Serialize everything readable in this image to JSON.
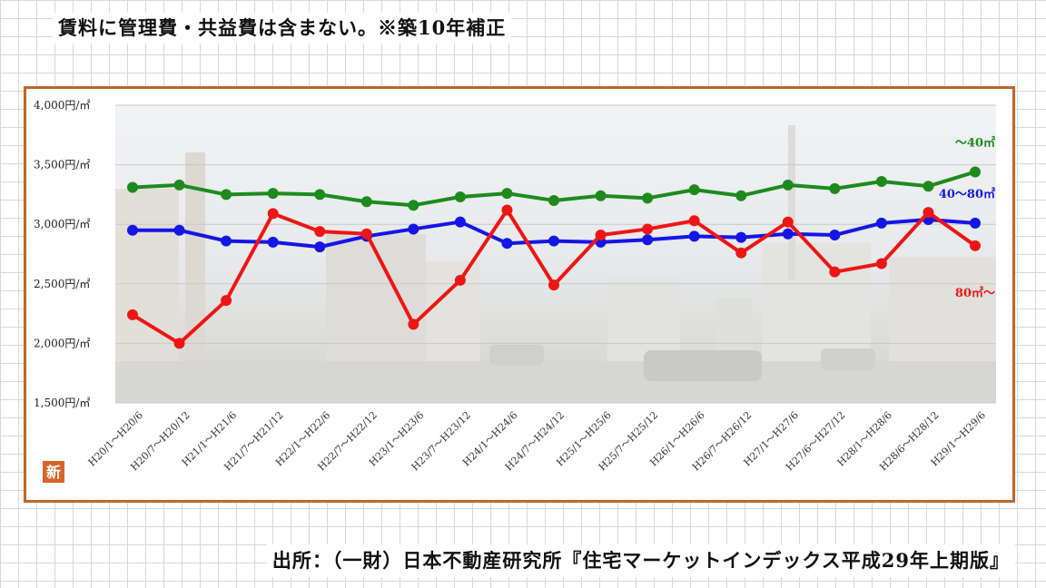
{
  "note": "賃料に管理費・共益費は含まない。※築10年補正",
  "source": "出所：（一財）日本不動産研究所『住宅マーケットインデックス平成29年上期版』",
  "badge": "新",
  "chart_data": {
    "type": "line",
    "title": "",
    "xlabel": "",
    "ylabel": "",
    "ylim": [
      1500,
      4000
    ],
    "yticks": [
      {
        "value": 1500,
        "label": "1,500円/㎡"
      },
      {
        "value": 2000,
        "label": "2,000円/㎡"
      },
      {
        "value": 2500,
        "label": "2,500円/㎡"
      },
      {
        "value": 3000,
        "label": "3,000円/㎡"
      },
      {
        "value": 3500,
        "label": "3,500円/㎡"
      },
      {
        "value": 4000,
        "label": "4,000円/㎡"
      }
    ],
    "grid": true,
    "categories": [
      "H20/1～H20/6",
      "H20/7～H20/12",
      "H21/1～H21/6",
      "H21/7～H21/12",
      "H22/1～H22/6",
      "H22/7～H22/12",
      "H23/1～H23/6",
      "H23/7～H23/12",
      "H24/1～H24/6",
      "H24/7～H24/12",
      "H25/1～H25/6",
      "H25/7～H25/12",
      "H26/1～H26/6",
      "H26/7～H26/12",
      "H27/1～H27/6",
      "H27/6～H27/12",
      "H28/1～H28/6",
      "H28/6～H28/12",
      "H29/1～H29/6"
    ],
    "series": [
      {
        "name": "～40㎡",
        "color": "#1e8a1e",
        "values": [
          3310,
          3330,
          3250,
          3260,
          3250,
          3190,
          3160,
          3230,
          3260,
          3200,
          3240,
          3220,
          3290,
          3240,
          3330,
          3300,
          3360,
          3320,
          3440
        ]
      },
      {
        "name": "40～80㎡",
        "color": "#1515e6",
        "values": [
          2950,
          2950,
          2860,
          2850,
          2810,
          2900,
          2960,
          3020,
          2840,
          2860,
          2850,
          2870,
          2900,
          2890,
          2920,
          2910,
          3010,
          3040,
          3010
        ]
      },
      {
        "name": "80㎡～",
        "color": "#ee1515",
        "values": [
          2240,
          2000,
          2360,
          3090,
          2940,
          2920,
          2160,
          2530,
          3120,
          2490,
          2910,
          2960,
          3030,
          2760,
          3020,
          2600,
          2670,
          3100,
          2820
        ]
      }
    ]
  }
}
